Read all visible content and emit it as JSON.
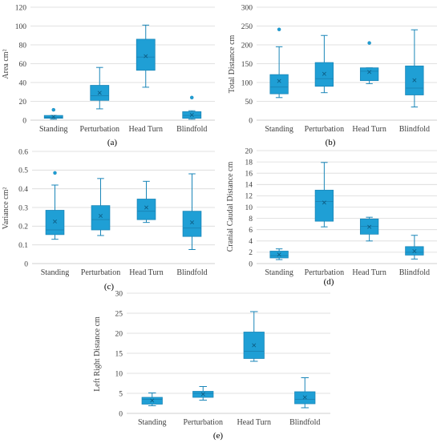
{
  "colors": {
    "box": "#1f9fd5",
    "stroke": "#1a86b8",
    "axis": "#bfbfbf",
    "grid": "#d9d9d9",
    "mean": "#0e5f86"
  },
  "chart_data": [
    {
      "type": "box",
      "panel_label": "(a)",
      "ylabel": "Area cm²",
      "ylim": [
        0,
        120
      ],
      "ytick_step": 20,
      "yticks": [
        "0",
        "20",
        "40",
        "60",
        "80",
        "100",
        "120"
      ],
      "categories": [
        "Standing",
        "Perturbation",
        "Head Turn",
        "Blindfold"
      ],
      "boxes": [
        {
          "min": 1,
          "q1": 2,
          "median": 3,
          "q3": 5,
          "max": 5,
          "mean": 3.5,
          "outliers": [
            11
          ]
        },
        {
          "min": 12,
          "q1": 21,
          "median": 26,
          "q3": 37,
          "max": 56,
          "mean": 29,
          "outliers": []
        },
        {
          "min": 35,
          "q1": 53,
          "median": 67,
          "q3": 86,
          "max": 101,
          "mean": 68,
          "outliers": []
        },
        {
          "min": 1,
          "q1": 2,
          "median": 5,
          "q3": 9,
          "max": 10,
          "mean": 5.5,
          "outliers": [
            24
          ]
        }
      ]
    },
    {
      "type": "box",
      "panel_label": "(b)",
      "ylabel": "Total Distance cm",
      "ylim": [
        0,
        300
      ],
      "ytick_step": 50,
      "yticks": [
        "0",
        "50",
        "100",
        "150",
        "200",
        "250",
        "300"
      ],
      "categories": [
        "Standing",
        "Perturbation",
        "Head Turn",
        "Blindfold"
      ],
      "boxes": [
        {
          "min": 60,
          "q1": 70,
          "median": 88,
          "q3": 121,
          "max": 195,
          "mean": 104,
          "outliers": [
            241
          ]
        },
        {
          "min": 73,
          "q1": 90,
          "median": 110,
          "q3": 153,
          "max": 225,
          "mean": 123,
          "outliers": []
        },
        {
          "min": 97,
          "q1": 105,
          "median": 130,
          "q3": 139,
          "max": 139,
          "mean": 128,
          "outliers": [
            205
          ]
        },
        {
          "min": 35,
          "q1": 67,
          "median": 85,
          "q3": 144,
          "max": 240,
          "mean": 106,
          "outliers": []
        }
      ]
    },
    {
      "type": "box",
      "panel_label": "(c)",
      "ylabel": "Variance cm²",
      "ylim": [
        0,
        0.6
      ],
      "ytick_step": 0.1,
      "yticks": [
        "0",
        "0.1",
        "0.2",
        "0.3",
        "0.4",
        "0.5",
        "0.6"
      ],
      "categories": [
        "Standing",
        "Perturbation",
        "Head Turn",
        "Blindfold"
      ],
      "boxes": [
        {
          "min": 0.13,
          "q1": 0.155,
          "median": 0.18,
          "q3": 0.285,
          "max": 0.42,
          "mean": 0.225,
          "outliers": [
            0.485
          ]
        },
        {
          "min": 0.15,
          "q1": 0.18,
          "median": 0.235,
          "q3": 0.31,
          "max": 0.455,
          "mean": 0.255,
          "outliers": []
        },
        {
          "min": 0.22,
          "q1": 0.235,
          "median": 0.28,
          "q3": 0.345,
          "max": 0.44,
          "mean": 0.3,
          "outliers": []
        },
        {
          "min": 0.075,
          "q1": 0.145,
          "median": 0.19,
          "q3": 0.28,
          "max": 0.48,
          "mean": 0.22,
          "outliers": []
        }
      ]
    },
    {
      "type": "box",
      "panel_label": "(d)",
      "ylabel": "Cranial Caudal Distance cm",
      "ylim": [
        0,
        20
      ],
      "ytick_step": 2,
      "yticks": [
        "0",
        "2",
        "4",
        "6",
        "8",
        "10",
        "12",
        "14",
        "16",
        "18",
        "20"
      ],
      "categories": [
        "Standing",
        "Perturbation",
        "Head Turn",
        "Blindfold"
      ],
      "boxes": [
        {
          "min": 0.7,
          "q1": 1.0,
          "median": 1.4,
          "q3": 2.2,
          "max": 2.6,
          "mean": 1.6,
          "outliers": []
        },
        {
          "min": 6.5,
          "q1": 7.5,
          "median": 11.0,
          "q3": 13.0,
          "max": 17.9,
          "mean": 10.8,
          "outliers": []
        },
        {
          "min": 4.0,
          "q1": 5.2,
          "median": 6.6,
          "q3": 7.9,
          "max": 8.2,
          "mean": 6.5,
          "outliers": []
        },
        {
          "min": 0.8,
          "q1": 1.5,
          "median": 2.0,
          "q3": 3.0,
          "max": 5.0,
          "mean": 2.2,
          "outliers": []
        }
      ]
    },
    {
      "type": "box",
      "panel_label": "(e)",
      "ylabel": "Left Right Distance cm",
      "ylim": [
        0,
        30
      ],
      "ytick_step": 5,
      "yticks": [
        "0",
        "5",
        "10",
        "15",
        "20",
        "25",
        "30"
      ],
      "categories": [
        "Standing",
        "Perturbation",
        "Head Turn",
        "Blindfold"
      ],
      "boxes": [
        {
          "min": 1.9,
          "q1": 2.3,
          "median": 3.5,
          "q3": 4.0,
          "max": 5.1,
          "mean": 3.2,
          "outliers": []
        },
        {
          "min": 3.3,
          "q1": 4.0,
          "median": 5.0,
          "q3": 5.5,
          "max": 6.7,
          "mean": 4.8,
          "outliers": []
        },
        {
          "min": 13.0,
          "q1": 13.7,
          "median": 15.5,
          "q3": 20.3,
          "max": 25.4,
          "mean": 17.0,
          "outliers": []
        },
        {
          "min": 1.4,
          "q1": 2.4,
          "median": 3.5,
          "q3": 5.4,
          "max": 8.9,
          "mean": 4.0,
          "outliers": []
        }
      ]
    }
  ]
}
